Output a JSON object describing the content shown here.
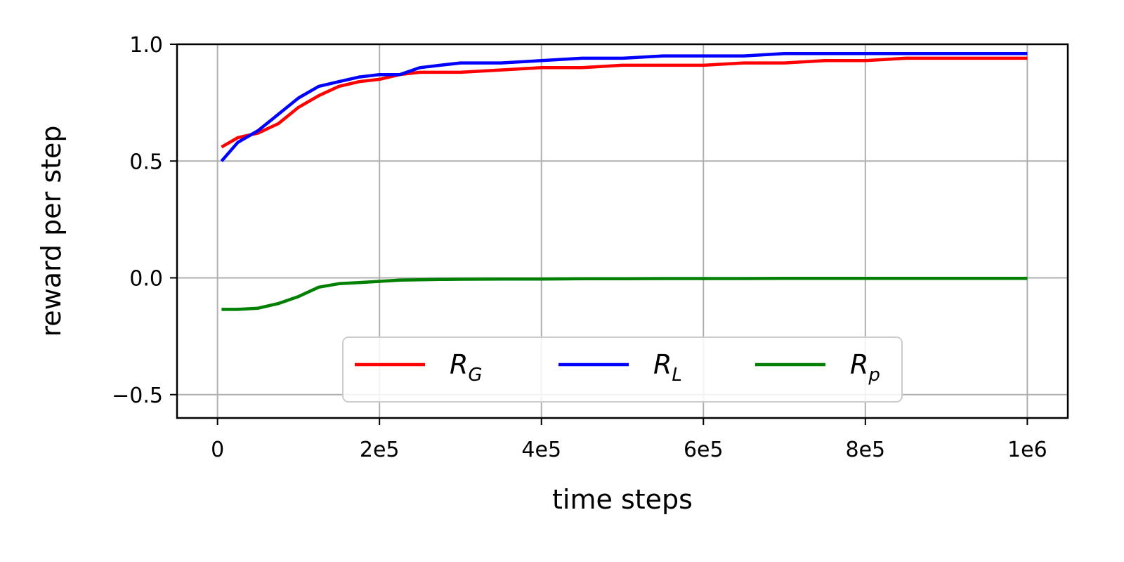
{
  "chart_data": {
    "type": "line",
    "title": "",
    "xlabel": "time steps",
    "ylabel": "reward per step",
    "xlim": [
      -50000,
      1050000
    ],
    "ylim": [
      -0.6,
      1.0
    ],
    "grid": true,
    "legend_position": "lower-center",
    "x_ticks": [
      {
        "value": 0,
        "label": "0"
      },
      {
        "value": 200000,
        "label": "2e5"
      },
      {
        "value": 400000,
        "label": "4e5"
      },
      {
        "value": 600000,
        "label": "6e5"
      },
      {
        "value": 800000,
        "label": "8e5"
      },
      {
        "value": 1000000,
        "label": "1e6"
      }
    ],
    "y_ticks": [
      {
        "value": -0.5,
        "label": "−0.5"
      },
      {
        "value": 0.0,
        "label": "0.0"
      },
      {
        "value": 0.5,
        "label": "0.5"
      },
      {
        "value": 1.0,
        "label": "1.0"
      }
    ],
    "x": [
      5000,
      25000,
      50000,
      75000,
      100000,
      125000,
      150000,
      175000,
      200000,
      225000,
      250000,
      275000,
      300000,
      350000,
      400000,
      450000,
      500000,
      550000,
      600000,
      650000,
      700000,
      750000,
      800000,
      850000,
      900000,
      950000,
      1000000
    ],
    "series": [
      {
        "name": "R",
        "subscript": "G",
        "color": "#ff0000",
        "values": [
          0.56,
          0.6,
          0.62,
          0.66,
          0.73,
          0.78,
          0.82,
          0.84,
          0.85,
          0.87,
          0.88,
          0.88,
          0.88,
          0.89,
          0.9,
          0.9,
          0.91,
          0.91,
          0.91,
          0.92,
          0.92,
          0.93,
          0.93,
          0.94,
          0.94,
          0.94,
          0.94
        ]
      },
      {
        "name": "R",
        "subscript": "L",
        "color": "#0000ff",
        "values": [
          0.5,
          0.58,
          0.63,
          0.7,
          0.77,
          0.82,
          0.84,
          0.86,
          0.87,
          0.87,
          0.9,
          0.91,
          0.92,
          0.92,
          0.93,
          0.94,
          0.94,
          0.95,
          0.95,
          0.95,
          0.96,
          0.96,
          0.96,
          0.96,
          0.96,
          0.96,
          0.96
        ]
      },
      {
        "name": "R",
        "subscript": "p",
        "color": "#008000",
        "values": [
          -0.135,
          -0.135,
          -0.13,
          -0.11,
          -0.08,
          -0.04,
          -0.025,
          -0.02,
          -0.015,
          -0.01,
          -0.008,
          -0.007,
          -0.006,
          -0.005,
          -0.005,
          -0.004,
          -0.004,
          -0.003,
          -0.003,
          -0.003,
          -0.002,
          -0.002,
          -0.002,
          -0.002,
          -0.002,
          -0.002,
          -0.002
        ]
      }
    ]
  }
}
